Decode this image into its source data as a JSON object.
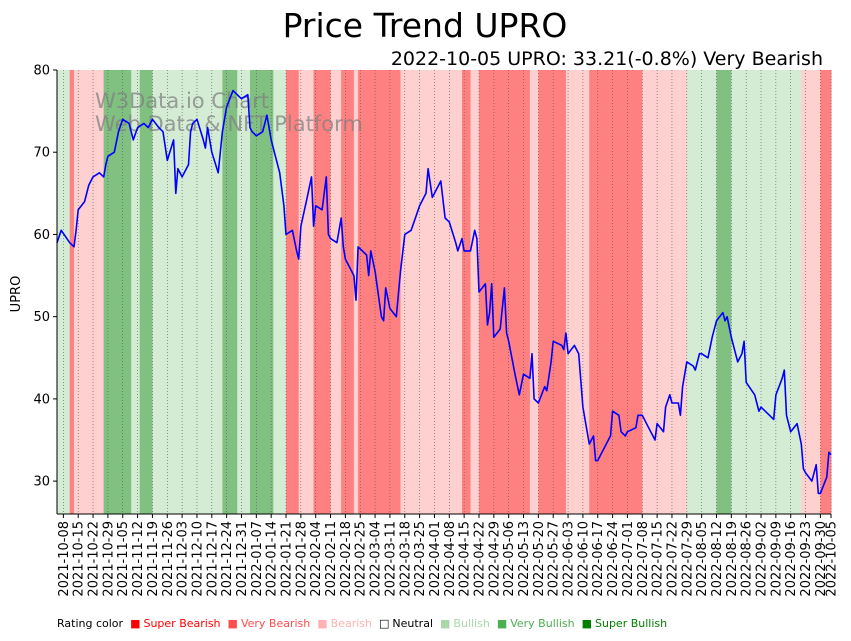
{
  "chart_data": {
    "type": "line",
    "title": "Price Trend UPRO",
    "subtitle": "2022-10-05 UPRO: 33.21(-0.8%) Very Bearish",
    "ylabel": "UPRO",
    "xlabel": "",
    "ylim": [
      26,
      80
    ],
    "yticks": [
      30,
      40,
      50,
      60,
      70,
      80
    ],
    "watermark": [
      "W3Data.io Chart",
      "Web Data & NFT Platform"
    ],
    "x_range": [
      "2021-10-05",
      "2022-10-05"
    ],
    "xticks": [
      "2021-10-08",
      "2021-10-15",
      "2021-10-22",
      "2021-10-29",
      "2021-11-05",
      "2021-11-12",
      "2021-11-19",
      "2021-11-26",
      "2021-12-03",
      "2021-12-10",
      "2021-12-17",
      "2021-12-24",
      "2021-12-31",
      "2022-01-07",
      "2022-01-14",
      "2022-01-21",
      "2022-01-28",
      "2022-02-04",
      "2022-02-11",
      "2022-02-18",
      "2022-02-25",
      "2022-03-04",
      "2022-03-11",
      "2022-03-18",
      "2022-03-25",
      "2022-04-01",
      "2022-04-08",
      "2022-04-15",
      "2022-04-22",
      "2022-04-29",
      "2022-05-06",
      "2022-05-13",
      "2022-05-20",
      "2022-05-27",
      "2022-06-03",
      "2022-06-10",
      "2022-06-17",
      "2022-06-24",
      "2022-07-01",
      "2022-07-08",
      "2022-07-15",
      "2022-07-22",
      "2022-07-29",
      "2022-08-05",
      "2022-08-12",
      "2022-08-19",
      "2022-08-26",
      "2022-09-02",
      "2022-09-09",
      "2022-09-16",
      "2022-09-23",
      "2022-09-30",
      "2022-10-05"
    ],
    "series": [
      {
        "name": "UPRO",
        "color": "#0000ff",
        "points": [
          [
            "2021-10-05",
            59.0
          ],
          [
            "2021-10-07",
            60.5
          ],
          [
            "2021-10-11",
            59.0
          ],
          [
            "2021-10-13",
            58.5
          ],
          [
            "2021-10-14",
            60.5
          ],
          [
            "2021-10-15",
            63.0
          ],
          [
            "2021-10-18",
            64.0
          ],
          [
            "2021-10-20",
            66.0
          ],
          [
            "2021-10-22",
            67.0
          ],
          [
            "2021-10-25",
            67.5
          ],
          [
            "2021-10-27",
            67.0
          ],
          [
            "2021-10-28",
            68.5
          ],
          [
            "2021-10-29",
            69.5
          ],
          [
            "2021-11-01",
            70.0
          ],
          [
            "2021-11-03",
            72.5
          ],
          [
            "2021-11-05",
            74.0
          ],
          [
            "2021-11-08",
            73.5
          ],
          [
            "2021-11-10",
            71.5
          ],
          [
            "2021-11-12",
            73.0
          ],
          [
            "2021-11-15",
            73.5
          ],
          [
            "2021-11-17",
            73.0
          ],
          [
            "2021-11-19",
            74.0
          ],
          [
            "2021-11-22",
            73.0
          ],
          [
            "2021-11-24",
            72.5
          ],
          [
            "2021-11-26",
            69.0
          ],
          [
            "2021-11-29",
            71.5
          ],
          [
            "2021-11-30",
            65.0
          ],
          [
            "2021-12-01",
            68.0
          ],
          [
            "2021-12-03",
            67.0
          ],
          [
            "2021-12-06",
            68.5
          ],
          [
            "2021-12-07",
            72.5
          ],
          [
            "2021-12-08",
            73.5
          ],
          [
            "2021-12-10",
            74.0
          ],
          [
            "2021-12-13",
            71.5
          ],
          [
            "2021-12-14",
            70.5
          ],
          [
            "2021-12-15",
            73.0
          ],
          [
            "2021-12-17",
            70.0
          ],
          [
            "2021-12-20",
            67.5
          ],
          [
            "2021-12-22",
            72.5
          ],
          [
            "2021-12-24",
            75.5
          ],
          [
            "2021-12-27",
            77.5
          ],
          [
            "2021-12-29",
            77.0
          ],
          [
            "2021-12-31",
            76.5
          ],
          [
            "2022-01-03",
            77.0
          ],
          [
            "2022-01-04",
            73.0
          ],
          [
            "2022-01-05",
            72.5
          ],
          [
            "2022-01-07",
            72.0
          ],
          [
            "2022-01-10",
            72.5
          ],
          [
            "2022-01-12",
            74.5
          ],
          [
            "2022-01-14",
            71.5
          ],
          [
            "2022-01-18",
            67.5
          ],
          [
            "2022-01-20",
            63.5
          ],
          [
            "2022-01-21",
            60.0
          ],
          [
            "2022-01-24",
            60.5
          ],
          [
            "2022-01-26",
            58.0
          ],
          [
            "2022-01-27",
            57.0
          ],
          [
            "2022-01-28",
            61.0
          ],
          [
            "2022-01-31",
            64.5
          ],
          [
            "2022-02-02",
            67.0
          ],
          [
            "2022-02-03",
            61.0
          ],
          [
            "2022-02-04",
            63.5
          ],
          [
            "2022-02-07",
            63.0
          ],
          [
            "2022-02-09",
            67.0
          ],
          [
            "2022-02-10",
            60.0
          ],
          [
            "2022-02-11",
            59.5
          ],
          [
            "2022-02-14",
            59.0
          ],
          [
            "2022-02-16",
            62.0
          ],
          [
            "2022-02-17",
            58.5
          ],
          [
            "2022-02-18",
            57.0
          ],
          [
            "2022-02-22",
            55.0
          ],
          [
            "2022-02-23",
            52.0
          ],
          [
            "2022-02-24",
            58.5
          ],
          [
            "2022-02-28",
            57.5
          ],
          [
            "2022-03-01",
            55.0
          ],
          [
            "2022-03-02",
            58.0
          ],
          [
            "2022-03-04",
            55.5
          ],
          [
            "2022-03-07",
            50.0
          ],
          [
            "2022-03-08",
            49.5
          ],
          [
            "2022-03-09",
            53.5
          ],
          [
            "2022-03-11",
            51.0
          ],
          [
            "2022-03-14",
            50.0
          ],
          [
            "2022-03-16",
            55.5
          ],
          [
            "2022-03-18",
            60.0
          ],
          [
            "2022-03-21",
            60.5
          ],
          [
            "2022-03-23",
            62.0
          ],
          [
            "2022-03-25",
            63.5
          ],
          [
            "2022-03-28",
            65.0
          ],
          [
            "2022-03-29",
            68.0
          ],
          [
            "2022-03-31",
            64.5
          ],
          [
            "2022-04-01",
            65.0
          ],
          [
            "2022-04-04",
            66.5
          ],
          [
            "2022-04-06",
            62.0
          ],
          [
            "2022-04-08",
            61.5
          ],
          [
            "2022-04-11",
            59.0
          ],
          [
            "2022-04-12",
            58.0
          ],
          [
            "2022-04-14",
            59.5
          ],
          [
            "2022-04-15",
            58.0
          ],
          [
            "2022-04-18",
            58.0
          ],
          [
            "2022-04-20",
            60.5
          ],
          [
            "2022-04-21",
            59.5
          ],
          [
            "2022-04-22",
            53.0
          ],
          [
            "2022-04-25",
            54.0
          ],
          [
            "2022-04-26",
            49.0
          ],
          [
            "2022-04-27",
            50.5
          ],
          [
            "2022-04-28",
            54.0
          ],
          [
            "2022-04-29",
            47.5
          ],
          [
            "2022-05-02",
            48.5
          ],
          [
            "2022-05-04",
            53.5
          ],
          [
            "2022-05-05",
            48.0
          ],
          [
            "2022-05-06",
            47.0
          ],
          [
            "2022-05-09",
            43.0
          ],
          [
            "2022-05-11",
            40.5
          ],
          [
            "2022-05-13",
            43.0
          ],
          [
            "2022-05-16",
            42.5
          ],
          [
            "2022-05-17",
            45.5
          ],
          [
            "2022-05-18",
            40.0
          ],
          [
            "2022-05-20",
            39.5
          ],
          [
            "2022-05-23",
            41.5
          ],
          [
            "2022-05-24",
            41.0
          ],
          [
            "2022-05-26",
            44.5
          ],
          [
            "2022-05-27",
            47.0
          ],
          [
            "2022-05-31",
            46.5
          ],
          [
            "2022-06-01",
            46.0
          ],
          [
            "2022-06-02",
            48.0
          ],
          [
            "2022-06-03",
            45.5
          ],
          [
            "2022-06-06",
            46.5
          ],
          [
            "2022-06-08",
            45.5
          ],
          [
            "2022-06-10",
            39.0
          ],
          [
            "2022-06-13",
            34.5
          ],
          [
            "2022-06-15",
            35.5
          ],
          [
            "2022-06-16",
            32.5
          ],
          [
            "2022-06-17",
            32.5
          ],
          [
            "2022-06-21",
            34.5
          ],
          [
            "2022-06-23",
            35.5
          ],
          [
            "2022-06-24",
            38.5
          ],
          [
            "2022-06-27",
            38.0
          ],
          [
            "2022-06-28",
            36.0
          ],
          [
            "2022-06-30",
            35.5
          ],
          [
            "2022-07-01",
            36.0
          ],
          [
            "2022-07-05",
            36.5
          ],
          [
            "2022-07-06",
            38.0
          ],
          [
            "2022-07-08",
            38.0
          ],
          [
            "2022-07-11",
            36.5
          ],
          [
            "2022-07-13",
            35.5
          ],
          [
            "2022-07-14",
            35.0
          ],
          [
            "2022-07-15",
            37.0
          ],
          [
            "2022-07-18",
            36.0
          ],
          [
            "2022-07-19",
            39.0
          ],
          [
            "2022-07-21",
            40.5
          ],
          [
            "2022-07-22",
            39.5
          ],
          [
            "2022-07-25",
            39.5
          ],
          [
            "2022-07-26",
            38.0
          ],
          [
            "2022-07-27",
            41.5
          ],
          [
            "2022-07-29",
            44.5
          ],
          [
            "2022-08-01",
            44.0
          ],
          [
            "2022-08-02",
            43.5
          ],
          [
            "2022-08-04",
            45.5
          ],
          [
            "2022-08-05",
            45.5
          ],
          [
            "2022-08-08",
            45.0
          ],
          [
            "2022-08-10",
            47.5
          ],
          [
            "2022-08-12",
            49.5
          ],
          [
            "2022-08-15",
            50.5
          ],
          [
            "2022-08-16",
            49.5
          ],
          [
            "2022-08-17",
            50.0
          ],
          [
            "2022-08-19",
            47.5
          ],
          [
            "2022-08-22",
            44.5
          ],
          [
            "2022-08-24",
            45.5
          ],
          [
            "2022-08-25",
            47.0
          ],
          [
            "2022-08-26",
            42.0
          ],
          [
            "2022-08-30",
            40.5
          ],
          [
            "2022-08-31",
            39.5
          ],
          [
            "2022-09-01",
            38.5
          ],
          [
            "2022-09-02",
            39.0
          ],
          [
            "2022-09-06",
            38.0
          ],
          [
            "2022-09-08",
            37.5
          ],
          [
            "2022-09-09",
            40.5
          ],
          [
            "2022-09-12",
            42.5
          ],
          [
            "2022-09-13",
            43.5
          ],
          [
            "2022-09-14",
            38.0
          ],
          [
            "2022-09-16",
            36.0
          ],
          [
            "2022-09-19",
            37.0
          ],
          [
            "2022-09-21",
            34.5
          ],
          [
            "2022-09-22",
            31.5
          ],
          [
            "2022-09-23",
            31.0
          ],
          [
            "2022-09-26",
            30.0
          ],
          [
            "2022-09-28",
            32.0
          ],
          [
            "2022-09-29",
            28.5
          ],
          [
            "2022-09-30",
            28.5
          ],
          [
            "2022-10-03",
            30.5
          ],
          [
            "2022-10-04",
            33.5
          ],
          [
            "2022-10-05",
            33.21
          ]
        ]
      }
    ],
    "rating_bands": [
      {
        "start": "2021-10-05",
        "end": "2021-10-11",
        "rating": "Bullish"
      },
      {
        "start": "2021-10-11",
        "end": "2021-10-13",
        "rating": "Very Bearish"
      },
      {
        "start": "2021-10-13",
        "end": "2021-10-27",
        "rating": "Bearish"
      },
      {
        "start": "2021-10-27",
        "end": "2021-11-09",
        "rating": "Very Bullish"
      },
      {
        "start": "2021-11-09",
        "end": "2021-11-13",
        "rating": "Bullish"
      },
      {
        "start": "2021-11-13",
        "end": "2021-11-19",
        "rating": "Very Bullish"
      },
      {
        "start": "2021-11-19",
        "end": "2021-11-27",
        "rating": "Bullish"
      },
      {
        "start": "2021-11-27",
        "end": "2021-12-22",
        "rating": "Bullish"
      },
      {
        "start": "2021-12-22",
        "end": "2021-12-29",
        "rating": "Very Bullish"
      },
      {
        "start": "2021-12-29",
        "end": "2022-01-04",
        "rating": "Bullish"
      },
      {
        "start": "2022-01-04",
        "end": "2022-01-15",
        "rating": "Very Bullish"
      },
      {
        "start": "2022-01-15",
        "end": "2022-01-18",
        "rating": "Bullish"
      },
      {
        "start": "2022-01-18",
        "end": "2022-01-21",
        "rating": "Bullish"
      },
      {
        "start": "2022-01-21",
        "end": "2022-01-27",
        "rating": "Very Bearish"
      },
      {
        "start": "2022-01-27",
        "end": "2022-02-03",
        "rating": "Bearish"
      },
      {
        "start": "2022-02-03",
        "end": "2022-02-11",
        "rating": "Very Bearish"
      },
      {
        "start": "2022-02-11",
        "end": "2022-02-16",
        "rating": "Bearish"
      },
      {
        "start": "2022-02-16",
        "end": "2022-02-22",
        "rating": "Very Bearish"
      },
      {
        "start": "2022-02-22",
        "end": "2022-02-24",
        "rating": "Bearish"
      },
      {
        "start": "2022-02-24",
        "end": "2022-03-16",
        "rating": "Very Bearish"
      },
      {
        "start": "2022-03-16",
        "end": "2022-04-14",
        "rating": "Bearish"
      },
      {
        "start": "2022-04-14",
        "end": "2022-04-18",
        "rating": "Very Bearish"
      },
      {
        "start": "2022-04-18",
        "end": "2022-04-22",
        "rating": "Bearish"
      },
      {
        "start": "2022-04-22",
        "end": "2022-05-16",
        "rating": "Very Bearish"
      },
      {
        "start": "2022-05-16",
        "end": "2022-05-20",
        "rating": "Bearish"
      },
      {
        "start": "2022-05-20",
        "end": "2022-06-02",
        "rating": "Very Bearish"
      },
      {
        "start": "2022-06-02",
        "end": "2022-06-13",
        "rating": "Bearish"
      },
      {
        "start": "2022-06-13",
        "end": "2022-07-08",
        "rating": "Very Bearish"
      },
      {
        "start": "2022-07-08",
        "end": "2022-07-16",
        "rating": "Bearish"
      },
      {
        "start": "2022-07-16",
        "end": "2022-07-29",
        "rating": "Bearish"
      },
      {
        "start": "2022-07-29",
        "end": "2022-08-12",
        "rating": "Bullish"
      },
      {
        "start": "2022-08-12",
        "end": "2022-08-19",
        "rating": "Very Bullish"
      },
      {
        "start": "2022-08-19",
        "end": "2022-08-26",
        "rating": "Bullish"
      },
      {
        "start": "2022-08-26",
        "end": "2022-09-21",
        "rating": "Bullish"
      },
      {
        "start": "2022-09-21",
        "end": "2022-09-30",
        "rating": "Bearish"
      },
      {
        "start": "2022-09-30",
        "end": "2022-10-05",
        "rating": "Very Bearish"
      }
    ],
    "legend": {
      "title": "Rating color",
      "items": [
        {
          "label": "Super Bearish",
          "color": "#ff0000",
          "fill": "#ff0000"
        },
        {
          "label": "Very Bearish",
          "color": "#ff4d4d",
          "fill": "#ff8080"
        },
        {
          "label": "Bearish",
          "color": "#ffb3b3",
          "fill": "#ffd0d0"
        },
        {
          "label": "Neutral",
          "color": "#000000",
          "fill": "#ffffff"
        },
        {
          "label": "Bullish",
          "color": "#a8d8a8",
          "fill": "#d4ecd4"
        },
        {
          "label": "Very Bullish",
          "color": "#4caf50",
          "fill": "#80c080"
        },
        {
          "label": "Super Bullish",
          "color": "#008000",
          "fill": "#008000"
        }
      ]
    }
  }
}
